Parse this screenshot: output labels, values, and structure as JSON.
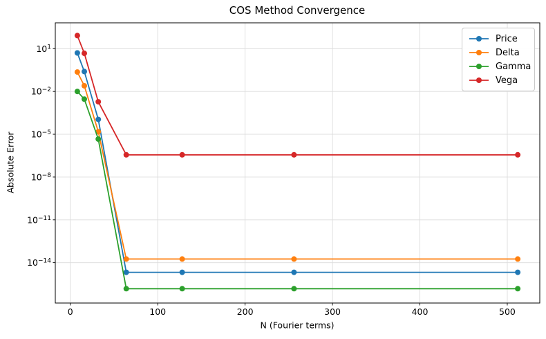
{
  "chart_data": {
    "type": "line",
    "title": "COS Method Convergence",
    "xlabel": "N (Fourier terms)",
    "ylabel": "Absolute Error",
    "x": [
      8,
      16,
      32,
      64,
      128,
      256,
      512
    ],
    "series": [
      {
        "name": "Price",
        "color": "#1f77b4",
        "values": [
          5.0,
          0.25,
          0.00011,
          2.1e-15,
          2.1e-15,
          2.1e-15,
          2.1e-15
        ]
      },
      {
        "name": "Delta",
        "color": "#ff7f0e",
        "values": [
          0.23,
          0.025,
          1.5e-05,
          1.8e-14,
          1.8e-14,
          1.8e-14,
          1.8e-14
        ]
      },
      {
        "name": "Gamma",
        "color": "#2ca02c",
        "values": [
          0.01,
          0.0029,
          4.6e-06,
          1.5e-16,
          1.5e-16,
          1.5e-16,
          1.5e-16
        ]
      },
      {
        "name": "Vega",
        "color": "#d62728",
        "values": [
          83,
          4.7,
          0.0019,
          3.6e-07,
          3.6e-07,
          3.6e-07,
          3.6e-07
        ]
      }
    ],
    "x_ticks": [
      0,
      100,
      200,
      300,
      400,
      500
    ],
    "y_tick_exponents": [
      1,
      -2,
      -5,
      -8,
      -11,
      -14
    ],
    "xlim": [
      -17.2,
      537.2
    ],
    "ylim_log": [
      -16.83,
      2.81
    ],
    "grid": true,
    "grid_color": "#dcdcdc",
    "spine_color": "#000000",
    "legend_position": "upper right",
    "marker": "o",
    "background": "#ffffff"
  }
}
